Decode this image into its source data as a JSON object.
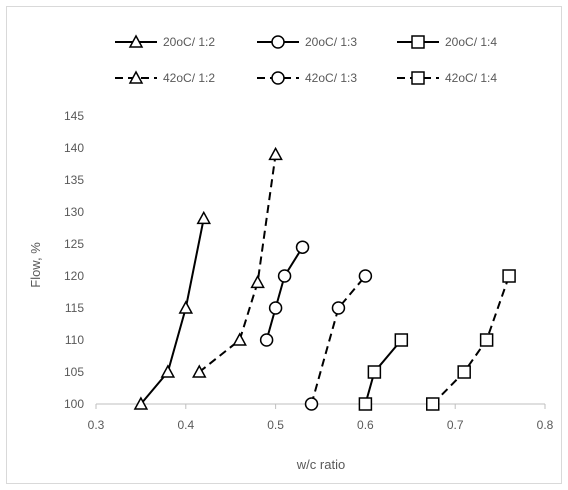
{
  "chart_data": {
    "type": "line",
    "xlabel": "w/c ratio",
    "ylabel": "Flow, %",
    "xlim": [
      0.3,
      0.8
    ],
    "ylim": [
      100,
      145
    ],
    "x_ticks": [
      0.3,
      0.4,
      0.5,
      0.6,
      0.7,
      0.8
    ],
    "x_tick_labels": [
      "0.3",
      "0.4",
      "0.5",
      "0.6",
      "0.7",
      "0.8"
    ],
    "y_ticks": [
      100,
      105,
      110,
      115,
      120,
      125,
      130,
      135,
      140,
      145
    ],
    "y_tick_labels": [
      "100",
      "105",
      "110",
      "115",
      "120",
      "125",
      "130",
      "135",
      "140",
      "145"
    ],
    "grid": false,
    "legend_position": "top",
    "series": [
      {
        "name": "20oC/ 1:2",
        "marker": "triangle",
        "dash": "solid",
        "color": "#000000",
        "points": [
          [
            0.35,
            100
          ],
          [
            0.38,
            105
          ],
          [
            0.4,
            115
          ],
          [
            0.42,
            129
          ]
        ]
      },
      {
        "name": "20oC/ 1:3",
        "marker": "circle",
        "dash": "solid",
        "color": "#000000",
        "points": [
          [
            0.49,
            110
          ],
          [
            0.5,
            115
          ],
          [
            0.51,
            120
          ],
          [
            0.53,
            124.5
          ]
        ]
      },
      {
        "name": "20oC/ 1:4",
        "marker": "square",
        "dash": "solid",
        "color": "#000000",
        "points": [
          [
            0.6,
            100
          ],
          [
            0.61,
            105
          ],
          [
            0.64,
            110
          ]
        ]
      },
      {
        "name": "42oC/ 1:2",
        "marker": "triangle",
        "dash": "dashed",
        "color": "#000000",
        "points": [
          [
            0.415,
            105
          ],
          [
            0.46,
            110
          ],
          [
            0.48,
            119
          ],
          [
            0.5,
            139
          ]
        ]
      },
      {
        "name": "42oC/ 1:3",
        "marker": "circle",
        "dash": "dashed",
        "color": "#000000",
        "points": [
          [
            0.54,
            100
          ],
          [
            0.57,
            115
          ],
          [
            0.6,
            120
          ]
        ]
      },
      {
        "name": "42oC/ 1:4",
        "marker": "square",
        "dash": "dashed",
        "color": "#000000",
        "points": [
          [
            0.675,
            100
          ],
          [
            0.71,
            105
          ],
          [
            0.735,
            110
          ],
          [
            0.76,
            120
          ]
        ]
      }
    ]
  }
}
